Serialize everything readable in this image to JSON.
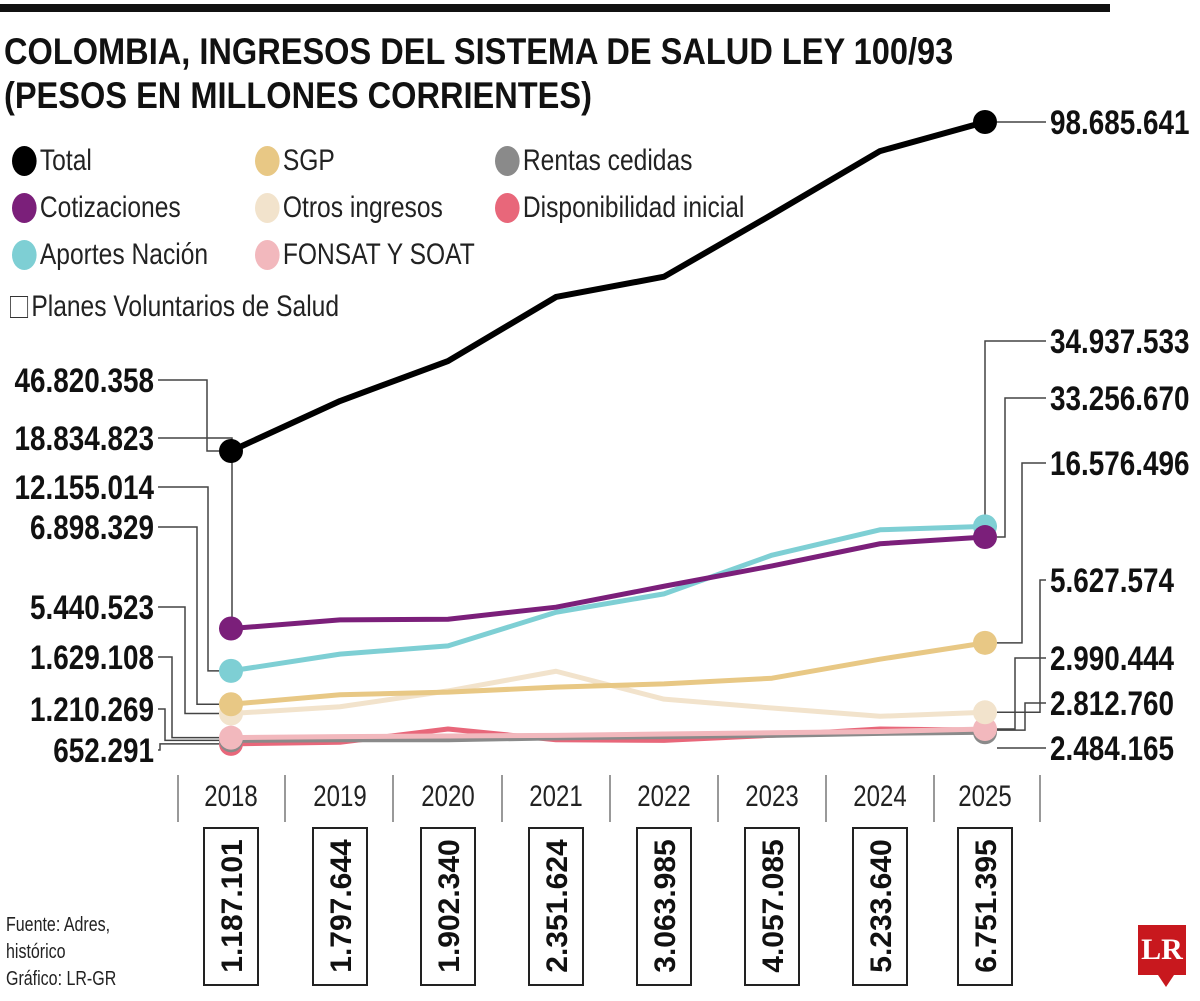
{
  "chart_data": {
    "type": "line",
    "title": "COLOMBIA, INGRESOS DEL SISTEMA DE SALUD LEY 100/93 (PESOS EN MILLONES CORRIENTES)",
    "title_lines": [
      "COLOMBIA, INGRESOS DEL SISTEMA DE SALUD LEY 100/93",
      "(PESOS EN MILLONES CORRIENTES)"
    ],
    "categories": [
      "2018",
      "2019",
      "2020",
      "2021",
      "2022",
      "2023",
      "2024",
      "2025"
    ],
    "ylim": [
      0,
      117000000
    ],
    "grid": false,
    "legend_position": "top-left",
    "series": [
      {
        "name": "Total",
        "color": "#000000",
        "values": [
          46820358,
          54700000,
          61000000,
          71100000,
          74300000,
          84100000,
          94100000,
          98685641
        ],
        "start_label": "46.820.358",
        "end_label": "98.685.641"
      },
      {
        "name": "Cotizaciones",
        "color": "#7b1f7a",
        "values": [
          18834823,
          20200000,
          20300000,
          22200000,
          25500000,
          28700000,
          32200000,
          33256670
        ],
        "start_label": "18.834.823",
        "end_label": "33.256.670"
      },
      {
        "name": "Aportes Nación",
        "color": "#7ecfd4",
        "values": [
          12155014,
          14800000,
          16100000,
          21400000,
          24300000,
          30400000,
          34400000,
          34937533
        ],
        "start_label": "12.155.014",
        "end_label": "34.937.533"
      },
      {
        "name": "SGP",
        "color": "#e8c885",
        "values": [
          6898329,
          8400000,
          8800000,
          9600000,
          10100000,
          11000000,
          14000000,
          16576496
        ],
        "start_label": "6.898.329",
        "end_label": "16.576.496"
      },
      {
        "name": "Otros ingresos",
        "color": "#f2e3cc",
        "values": [
          5440523,
          6500000,
          9000000,
          12100000,
          7700000,
          6300000,
          5000000,
          5627574
        ],
        "start_label": "5.440.523",
        "end_label": "5.627.574"
      },
      {
        "name": "FONSAT Y SOAT",
        "color": "#f2b8bd",
        "values": [
          1629108,
          1800000,
          1900000,
          2000000,
          2200000,
          2400000,
          2600000,
          2990444
        ],
        "start_label": "1.629.108",
        "end_label": "2.990.444"
      },
      {
        "name": "Rentas cedidas",
        "color": "#8a8a8a",
        "values": [
          1210269,
          1300000,
          1300000,
          1600000,
          1800000,
          2000000,
          2300000,
          2484165
        ],
        "start_label": "1.210.269",
        "end_label": "2.484.165"
      },
      {
        "name": "Disponibilidad inicial",
        "color": "#e8677a",
        "values": [
          652291,
          900000,
          3000000,
          1300000,
          1200000,
          2000000,
          3000000,
          2812760
        ],
        "start_label": "652.291",
        "end_label": "2.812.760"
      }
    ],
    "planes_voluntarios": {
      "name": "Planes Voluntarios de Salud",
      "labels": [
        "1.187.101",
        "1.797.644",
        "1.902.340",
        "2.351.624",
        "3.063.985",
        "4.057.085",
        "5.233.640",
        "6.751.395"
      ],
      "values": [
        1187101,
        1797644,
        1902340,
        2351624,
        3063985,
        4057085,
        5233640,
        6751395
      ]
    },
    "legend_order": [
      "Total",
      "SGP",
      "Rentas cedidas",
      "Cotizaciones",
      "Otros ingresos",
      "Disponibilidad inicial",
      "Aportes Nación",
      "FONSAT Y SOAT"
    ]
  },
  "footer": {
    "source": "Fuente: Adres,",
    "source2": "histórico",
    "credit": "Gráfico: LR-GR"
  },
  "logo": "LR"
}
